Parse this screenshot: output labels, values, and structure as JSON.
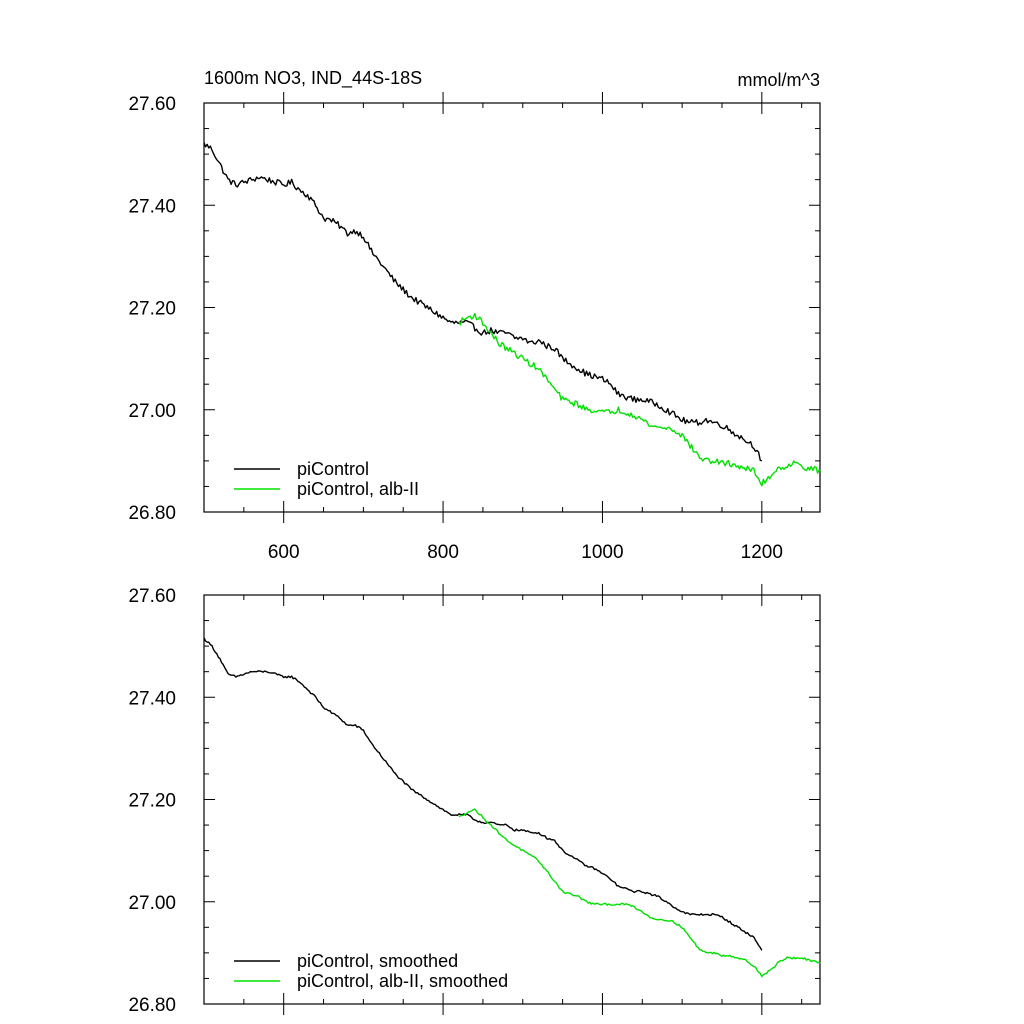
{
  "figure": {
    "title_left": "1600m NO3, IND_44S-18S",
    "title_right": "mmol/m^3"
  },
  "chart_data": [
    {
      "type": "line",
      "panel": "top",
      "title": "1600m NO3, IND_44S-18S",
      "units": "mmol/m^3",
      "xlabel": "",
      "ylabel": "",
      "xlim": [
        500,
        1273
      ],
      "ylim": [
        26.8,
        27.6
      ],
      "xticks": [
        600,
        800,
        1000,
        1200
      ],
      "xtick_labels": [
        "600",
        "800",
        "1000",
        "1200"
      ],
      "yticks": [
        26.8,
        27.0,
        27.2,
        27.4,
        27.6
      ],
      "ytick_labels": [
        "26.80",
        "27.00",
        "27.20",
        "27.40",
        "27.60"
      ],
      "show_xtick_labels": true,
      "grid": false,
      "legend_position": "bottom-left",
      "noise": 0.006,
      "series": [
        {
          "name": "piControl",
          "color": "#000000",
          "x": [
            500,
            510,
            520,
            530,
            540,
            550,
            560,
            570,
            580,
            590,
            600,
            610,
            620,
            630,
            640,
            650,
            660,
            670,
            680,
            690,
            700,
            710,
            720,
            730,
            740,
            750,
            760,
            770,
            780,
            790,
            800,
            810,
            820,
            830,
            840,
            850,
            860,
            870,
            880,
            890,
            900,
            910,
            920,
            930,
            940,
            950,
            960,
            970,
            980,
            990,
            1000,
            1010,
            1020,
            1030,
            1040,
            1050,
            1060,
            1070,
            1080,
            1090,
            1100,
            1110,
            1120,
            1130,
            1140,
            1150,
            1160,
            1170,
            1180,
            1190,
            1200
          ],
          "y": [
            27.52,
            27.51,
            27.48,
            27.45,
            27.44,
            27.445,
            27.45,
            27.455,
            27.45,
            27.445,
            27.44,
            27.445,
            27.43,
            27.42,
            27.4,
            27.375,
            27.37,
            27.36,
            27.345,
            27.35,
            27.34,
            27.31,
            27.29,
            27.27,
            27.25,
            27.235,
            27.22,
            27.21,
            27.2,
            27.19,
            27.18,
            27.17,
            27.17,
            27.17,
            27.16,
            27.15,
            27.155,
            27.15,
            27.15,
            27.14,
            27.14,
            27.13,
            27.135,
            27.125,
            27.12,
            27.1,
            27.09,
            27.08,
            27.07,
            27.065,
            27.06,
            27.05,
            27.03,
            27.025,
            27.02,
            27.02,
            27.015,
            27.01,
            27.0,
            26.99,
            26.98,
            26.975,
            26.975,
            26.98,
            26.975,
            26.97,
            26.96,
            26.95,
            26.94,
            26.93,
            26.9
          ]
        },
        {
          "name": "piControl, alb-II",
          "color": "#00e000",
          "x": [
            820,
            830,
            840,
            850,
            860,
            870,
            880,
            890,
            900,
            910,
            920,
            930,
            940,
            950,
            960,
            970,
            980,
            990,
            1000,
            1010,
            1020,
            1030,
            1040,
            1050,
            1060,
            1070,
            1080,
            1090,
            1100,
            1110,
            1120,
            1130,
            1140,
            1150,
            1160,
            1170,
            1180,
            1190,
            1200,
            1210,
            1220,
            1230,
            1240,
            1250,
            1260,
            1273
          ],
          "y": [
            27.17,
            27.18,
            27.185,
            27.17,
            27.15,
            27.13,
            27.12,
            27.11,
            27.1,
            27.09,
            27.08,
            27.06,
            27.04,
            27.02,
            27.015,
            27.01,
            27.0,
            27.0,
            26.995,
            26.995,
            27.0,
            26.995,
            26.99,
            26.98,
            26.97,
            26.965,
            26.965,
            26.96,
            26.95,
            26.93,
            26.91,
            26.9,
            26.9,
            26.895,
            26.895,
            26.89,
            26.885,
            26.88,
            26.855,
            26.87,
            26.885,
            26.89,
            26.895,
            26.89,
            26.885,
            26.88
          ]
        }
      ]
    },
    {
      "type": "line",
      "panel": "bottom",
      "title": "",
      "xlabel": "",
      "ylabel": "",
      "xlim": [
        500,
        1273
      ],
      "ylim": [
        26.8,
        27.6
      ],
      "xticks": [
        600,
        800,
        1000,
        1200
      ],
      "xtick_labels": [],
      "yticks": [
        26.8,
        27.0,
        27.2,
        27.4,
        27.6
      ],
      "ytick_labels": [
        "26.80",
        "27.00",
        "27.20",
        "27.40",
        "27.60"
      ],
      "show_xtick_labels": false,
      "grid": false,
      "legend_position": "bottom-left",
      "noise": 0.002,
      "series": [
        {
          "name": "piControl, smoothed",
          "color": "#000000",
          "x": [
            500,
            510,
            520,
            530,
            540,
            550,
            560,
            570,
            580,
            590,
            600,
            610,
            620,
            630,
            640,
            650,
            660,
            670,
            680,
            690,
            700,
            710,
            720,
            730,
            740,
            750,
            760,
            770,
            780,
            790,
            800,
            810,
            820,
            830,
            840,
            850,
            860,
            870,
            880,
            890,
            900,
            910,
            920,
            930,
            940,
            950,
            960,
            970,
            980,
            990,
            1000,
            1010,
            1020,
            1030,
            1040,
            1050,
            1060,
            1070,
            1080,
            1090,
            1100,
            1110,
            1120,
            1130,
            1140,
            1150,
            1160,
            1170,
            1180,
            1190,
            1200
          ],
          "y": [
            27.515,
            27.5,
            27.475,
            27.445,
            27.44,
            27.445,
            27.45,
            27.45,
            27.45,
            27.445,
            27.44,
            27.44,
            27.43,
            27.415,
            27.4,
            27.38,
            27.37,
            27.36,
            27.345,
            27.345,
            27.335,
            27.31,
            27.29,
            27.27,
            27.25,
            27.235,
            27.22,
            27.21,
            27.2,
            27.19,
            27.18,
            27.17,
            27.17,
            27.17,
            27.16,
            27.155,
            27.155,
            27.15,
            27.15,
            27.14,
            27.14,
            27.135,
            27.135,
            27.125,
            27.12,
            27.1,
            27.09,
            27.08,
            27.07,
            27.065,
            27.055,
            27.045,
            27.03,
            27.025,
            27.02,
            27.02,
            27.015,
            27.01,
            27.0,
            26.99,
            26.98,
            26.975,
            26.975,
            26.975,
            26.975,
            26.97,
            26.96,
            26.95,
            26.94,
            26.93,
            26.905
          ]
        },
        {
          "name": "piControl, alb-II, smoothed",
          "color": "#00e000",
          "x": [
            820,
            830,
            840,
            850,
            860,
            870,
            880,
            890,
            900,
            910,
            920,
            930,
            940,
            950,
            960,
            970,
            980,
            990,
            1000,
            1010,
            1020,
            1030,
            1040,
            1050,
            1060,
            1070,
            1080,
            1090,
            1100,
            1110,
            1120,
            1130,
            1140,
            1150,
            1160,
            1170,
            1180,
            1190,
            1200,
            1210,
            1220,
            1230,
            1240,
            1250,
            1260,
            1273
          ],
          "y": [
            27.165,
            27.175,
            27.18,
            27.165,
            27.15,
            27.135,
            27.12,
            27.11,
            27.1,
            27.09,
            27.08,
            27.06,
            27.04,
            27.02,
            27.015,
            27.01,
            27.0,
            26.995,
            26.995,
            26.995,
            26.995,
            26.995,
            26.99,
            26.98,
            26.97,
            26.965,
            26.965,
            26.96,
            26.95,
            26.93,
            26.91,
            26.9,
            26.9,
            26.895,
            26.895,
            26.89,
            26.885,
            26.875,
            26.855,
            26.865,
            26.88,
            26.89,
            26.89,
            26.89,
            26.885,
            26.88
          ]
        }
      ]
    }
  ]
}
